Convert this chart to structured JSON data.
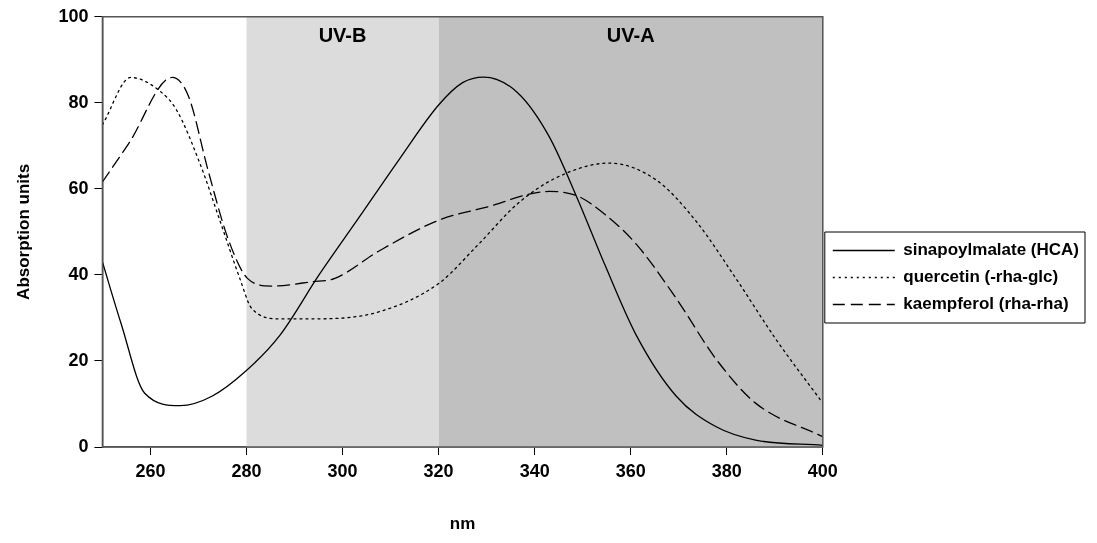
{
  "chart_data": {
    "type": "line",
    "xlabel": "nm",
    "ylabel": "Absorption units",
    "xlim": [
      250,
      400
    ],
    "xticks": [
      260,
      280,
      300,
      320,
      340,
      360,
      380,
      400
    ],
    "ylim": [
      0,
      100
    ],
    "yticks": [
      0,
      20,
      40,
      60,
      80,
      100
    ],
    "grid": false,
    "legend": "right",
    "marker": "none",
    "bands": [
      {
        "axis": "x",
        "from": 280,
        "to": 320,
        "label": "UV-B",
        "color": "#dcdcdc"
      },
      {
        "axis": "x",
        "from": 320,
        "to": 400,
        "label": "UV-A",
        "color": "#c0c0c0"
      }
    ],
    "series": [
      {
        "name": "sinapoylmalate (HCA)",
        "color": "#000000",
        "line_style": "solid",
        "x": [
          250,
          253.8,
          258.8,
          266.2,
          272.8,
          279.8,
          286.9,
          295.1,
          303.4,
          311.7,
          320,
          325,
          329.4,
          336.4,
          343,
          348.8,
          354.6,
          361.2,
          369.5,
          377.8,
          386,
          400
        ],
        "values": [
          43,
          29,
          12.5,
          9.6,
          11.8,
          17.6,
          25.9,
          40,
          53.3,
          66.7,
          79.5,
          84.7,
          86,
          82.4,
          72.2,
          58,
          42.4,
          25.9,
          11.8,
          4.7,
          1.6,
          0.4
        ]
      },
      {
        "name": "quercetin (-rha-glc)",
        "color": "#000000",
        "line_style": "dotted",
        "x": [
          250,
          255.9,
          262,
          265.4,
          270.3,
          274.5,
          278.6,
          281.1,
          286.9,
          295.1,
          307.5,
          320,
          328.2,
          336.4,
          344.7,
          355.5,
          365.4,
          373.6,
          381.9,
          390.2,
          400
        ],
        "values": [
          74.9,
          85.9,
          82.7,
          78.4,
          65.9,
          52.5,
          39.2,
          32.2,
          29.8,
          29.8,
          31.4,
          38,
          47,
          56.5,
          62.7,
          66,
          62,
          52.5,
          39.2,
          25.1,
          10.2
        ]
      },
      {
        "name": "kaempferol (rha-rha)",
        "color": "#000000",
        "line_style": "dashed",
        "x": [
          250,
          255.5,
          264.5,
          267.9,
          272,
          276.1,
          280.2,
          285.2,
          293.5,
          298.4,
          307.5,
          320,
          329.8,
          343,
          348.8,
          354.6,
          361.2,
          369.5,
          377.8,
          386,
          400
        ],
        "values": [
          61.6,
          70.6,
          85.9,
          81.6,
          64.3,
          48.6,
          39.2,
          37.4,
          38.4,
          39.2,
          45.5,
          52.7,
          55.7,
          59.4,
          58.4,
          54.1,
          47.1,
          34.5,
          20.4,
          10.2,
          2.4
        ]
      }
    ]
  }
}
